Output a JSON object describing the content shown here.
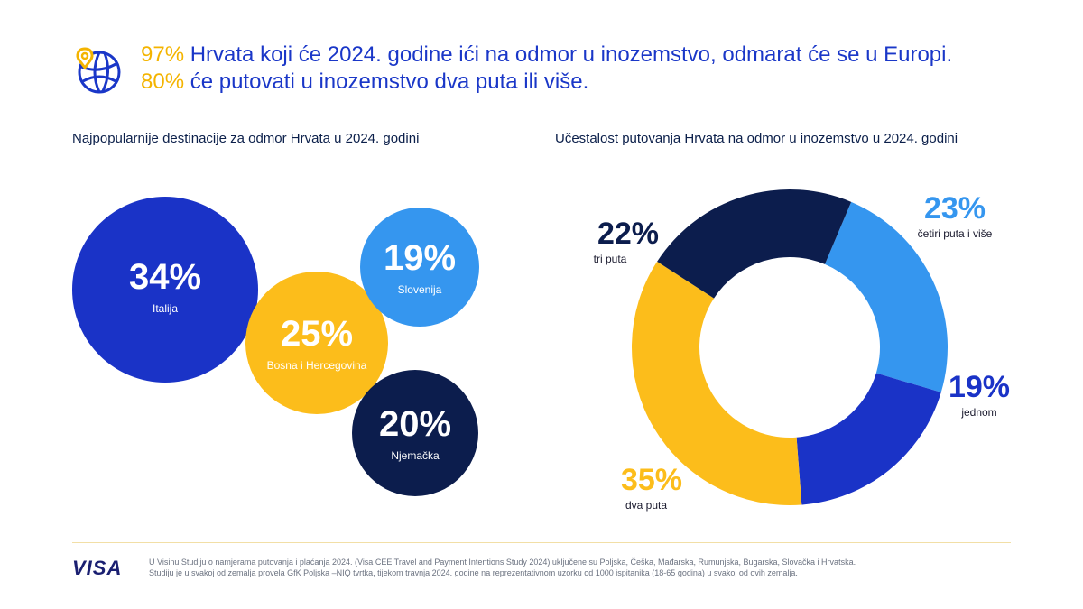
{
  "header": {
    "icon": "globe-location-icon",
    "line1_pct": "97%",
    "line1_text": " Hrvata koji će 2024. godine ići na odmor u inozemstvo, odmarat će se u Europi.",
    "line2_pct": "80%",
    "line2_text": " će putovati u inozemstvo dva puta ili više."
  },
  "colors": {
    "navy": "#0c1d4d",
    "royal_blue": "#1a33c7",
    "light_blue": "#3596ef",
    "yellow": "#fcbd1b",
    "headline_blue": "#1a37c8"
  },
  "chart_data": [
    {
      "type": "bubble",
      "title": "Najpopularnije destinacije za odmor Hrvata u 2024. godini",
      "categories": [
        "Italija",
        "Bosna i Hercegovina",
        "Slovenija",
        "Njemačka"
      ],
      "values": [
        34,
        25,
        19,
        20
      ],
      "value_labels": [
        "34%",
        "25%",
        "19%",
        "20%"
      ],
      "unit": "%",
      "colors": [
        "#1a33c7",
        "#fcbd1b",
        "#3596ef",
        "#0c1d4d"
      ]
    },
    {
      "type": "pie",
      "style": "donut",
      "title": "Učestalost putovanja Hrvata na odmor u inozemstvo u 2024. godini",
      "categories": [
        "četiri puta  i više",
        "jednom",
        "dva puta",
        "tri puta"
      ],
      "values": [
        23,
        19,
        35,
        22
      ],
      "value_labels": [
        "23%",
        "19%",
        "35%",
        "22%"
      ],
      "unit": "%",
      "colors": [
        "#3596ef",
        "#1a33c7",
        "#fcbd1b",
        "#0c1d4d"
      ]
    }
  ],
  "footer": {
    "logo": "VISA",
    "note_line1": "U Visinu Studiju o namjerama putovanja i plaćanja 2024. (Visa CEE Travel and Payment Intentions Study 2024) uključene su Poljska, Češka, Mađarska, Rumunjska, Bugarska, Slovačka i Hrvatska.",
    "note_line2": "Studiju je u svakoj od zemalja provela GfK Poljska –NIQ tvrtka,  tijekom travnja 2024. godine na reprezentativnom uzorku od 1000 ispitanika (18-65 godina) u svakoj od ovih zemalja."
  }
}
